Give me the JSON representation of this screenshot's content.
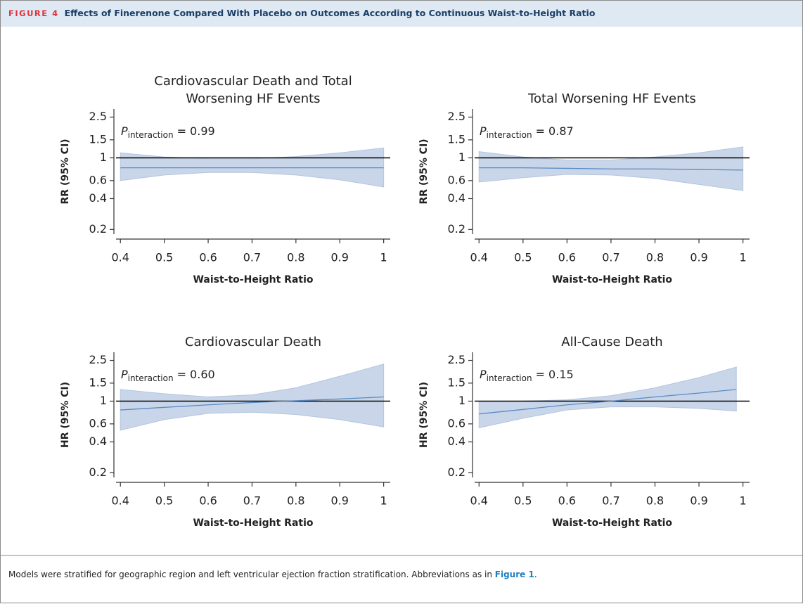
{
  "header": {
    "label": "FIGURE 4",
    "title": "Effects of Finerenone Compared With Placebo on Outcomes According to Continuous Waist-to-Height Ratio"
  },
  "chart_data": [
    {
      "type": "line",
      "title": "Cardiovascular Death and Total Worsening HF Events",
      "x_label": "Waist-to-Height Ratio",
      "y_label": "RR (95% CI)",
      "annotation": {
        "symbol": "P",
        "subscript": "interaction",
        "text": "= 0.99"
      },
      "log_y": true,
      "refline": 1,
      "color": "#5b8bc4",
      "band_color": "#c9d6e9",
      "x": [
        0.4,
        0.5,
        0.6,
        0.7,
        0.8,
        0.9,
        1.0
      ],
      "values": [
        0.8,
        0.8,
        0.8,
        0.8,
        0.8,
        0.8,
        0.8
      ],
      "upper": [
        1.12,
        1.02,
        0.98,
        0.98,
        1.03,
        1.12,
        1.25
      ],
      "lower": [
        0.6,
        0.68,
        0.72,
        0.72,
        0.68,
        0.61,
        0.52
      ],
      "xlim": [
        0.39,
        1.015
      ],
      "ylim": [
        0.18,
        3
      ],
      "xticks": [
        0.4,
        0.5,
        0.6,
        0.7,
        0.8,
        0.9,
        1
      ],
      "yticks": [
        0.2,
        0.4,
        0.6,
        1,
        1.5,
        2.5
      ]
    },
    {
      "type": "line",
      "title": "Total Worsening HF Events",
      "x_label": "Waist-to-Height Ratio",
      "y_label": "RR (95% CI)",
      "annotation": {
        "symbol": "P",
        "subscript": "interaction",
        "text": "= 0.87"
      },
      "log_y": true,
      "refline": 1,
      "color": "#5b8bc4",
      "band_color": "#c9d6e9",
      "x": [
        0.4,
        0.5,
        0.6,
        0.7,
        0.8,
        0.9,
        1.0
      ],
      "values": [
        0.8,
        0.8,
        0.79,
        0.78,
        0.78,
        0.77,
        0.76
      ],
      "upper": [
        1.15,
        1.02,
        0.95,
        0.95,
        1.02,
        1.12,
        1.28
      ],
      "lower": [
        0.58,
        0.64,
        0.69,
        0.68,
        0.63,
        0.55,
        0.48
      ],
      "xlim": [
        0.39,
        1.015
      ],
      "ylim": [
        0.18,
        3
      ],
      "xticks": [
        0.4,
        0.5,
        0.6,
        0.7,
        0.8,
        0.9,
        1
      ],
      "yticks": [
        0.2,
        0.4,
        0.6,
        1,
        1.5,
        2.5
      ]
    },
    {
      "type": "line",
      "title": "Cardiovascular Death",
      "x_label": "Waist-to-Height Ratio",
      "y_label": "HR (95% CI)",
      "annotation": {
        "symbol": "P",
        "subscript": "interaction",
        "text": "= 0.60"
      },
      "log_y": true,
      "refline": 1,
      "color": "#5b8bc4",
      "band_color": "#c9d6e9",
      "x": [
        0.4,
        0.5,
        0.6,
        0.7,
        0.8,
        0.9,
        1.0
      ],
      "values": [
        0.82,
        0.87,
        0.92,
        0.97,
        1.01,
        1.05,
        1.1
      ],
      "upper": [
        1.3,
        1.18,
        1.1,
        1.15,
        1.35,
        1.75,
        2.3
      ],
      "lower": [
        0.52,
        0.66,
        0.76,
        0.78,
        0.74,
        0.66,
        0.56
      ],
      "xlim": [
        0.39,
        1.015
      ],
      "ylim": [
        0.18,
        3
      ],
      "xticks": [
        0.4,
        0.5,
        0.6,
        0.7,
        0.8,
        0.9,
        1
      ],
      "yticks": [
        0.2,
        0.4,
        0.6,
        1,
        1.5,
        2.5
      ]
    },
    {
      "type": "line",
      "title": "All-Cause Death",
      "x_label": "Waist-to-Height Ratio",
      "y_label": "HR (95% CI)",
      "annotation": {
        "symbol": "P",
        "subscript": "interaction",
        "text": "= 0.15"
      },
      "log_y": true,
      "refline": 1,
      "color": "#5b8bc4",
      "band_color": "#c9d6e9",
      "x": [
        0.4,
        0.5,
        0.6,
        0.7,
        0.8,
        0.9,
        0.985
      ],
      "values": [
        0.75,
        0.83,
        0.92,
        1.0,
        1.1,
        1.2,
        1.3
      ],
      "upper": [
        1.0,
        1.0,
        1.03,
        1.13,
        1.35,
        1.7,
        2.15
      ],
      "lower": [
        0.55,
        0.68,
        0.82,
        0.88,
        0.88,
        0.85,
        0.8
      ],
      "xlim": [
        0.39,
        1.015
      ],
      "ylim": [
        0.18,
        3
      ],
      "xticks": [
        0.4,
        0.5,
        0.6,
        0.7,
        0.8,
        0.9,
        1
      ],
      "yticks": [
        0.2,
        0.4,
        0.6,
        1,
        1.5,
        2.5
      ]
    }
  ],
  "caption": {
    "text": "Models were stratified for geographic region and left ventricular ejection fraction stratification. Abbreviations as in ",
    "link": "Figure 1",
    "end": "."
  }
}
